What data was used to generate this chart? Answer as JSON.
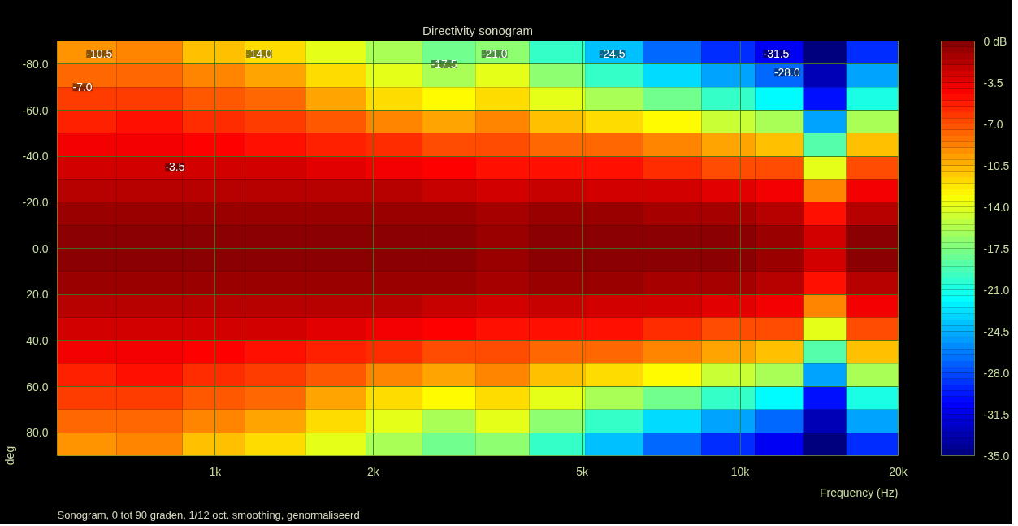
{
  "chart_data": {
    "type": "heatmap",
    "title": "Directivity sonogram",
    "xlabel": "Frequency (Hz)",
    "ylabel": "deg",
    "x": [
      560,
      750,
      1000,
      1300,
      1700,
      2200,
      2800,
      3500,
      4500,
      5700,
      7500,
      9500,
      12000,
      14500,
      17500
    ],
    "y": [
      -85,
      -75,
      -65,
      -55,
      -45,
      -35,
      -25,
      -15,
      -5,
      5,
      15,
      25,
      35,
      45,
      55,
      65,
      75,
      85
    ],
    "cells": [
      [
        -9.5,
        -9,
        -11,
        -12,
        -14,
        -16,
        -18,
        -17,
        -20,
        -24,
        -27,
        -29,
        -31,
        -35,
        -29
      ],
      [
        -8,
        -8,
        -9,
        -10,
        -12,
        -14,
        -16,
        -14,
        -17,
        -20,
        -23,
        -25,
        -27,
        -33,
        -25
      ],
      [
        -6.5,
        -6.5,
        -7.5,
        -8,
        -10,
        -12,
        -13,
        -12,
        -14,
        -16,
        -18,
        -20,
        -22,
        -30,
        -21
      ],
      [
        -5.5,
        -5,
        -6,
        -6.5,
        -7.5,
        -9,
        -10,
        -9,
        -11,
        -12,
        -13,
        -15,
        -16,
        -25,
        -16
      ],
      [
        -4,
        -4,
        -4.5,
        -5,
        -5.5,
        -6,
        -7,
        -7,
        -8,
        -8,
        -9,
        -10,
        -11,
        -19,
        -11
      ],
      [
        -3,
        -3,
        -3,
        -3,
        -3.5,
        -4,
        -4.5,
        -5,
        -5,
        -5,
        -6,
        -7,
        -7,
        -14,
        -7
      ],
      [
        -2,
        -2,
        -2,
        -2,
        -2,
        -2,
        -2.5,
        -3,
        -2.5,
        -3,
        -3,
        -3.5,
        -4,
        -9,
        -4
      ],
      [
        -1,
        -1,
        -1,
        -1,
        -1,
        -1,
        -1,
        -1.5,
        -1,
        -1,
        -1.5,
        -1.5,
        -2,
        -5,
        -2
      ],
      [
        -0.5,
        -0.5,
        -0.5,
        -0.5,
        -0.5,
        -0.5,
        -0.5,
        -1,
        -0.5,
        -0.5,
        -0.5,
        -0.5,
        -1,
        -3,
        -0.5
      ],
      [
        -0.5,
        -0.5,
        -0.5,
        -0.5,
        -0.5,
        -0.5,
        -0.5,
        -1,
        -0.5,
        -0.5,
        -0.5,
        -0.5,
        -1,
        -3,
        -0.5
      ],
      [
        -1,
        -1,
        -1,
        -1,
        -1,
        -1,
        -1,
        -1.5,
        -1,
        -1,
        -1.5,
        -1.5,
        -2,
        -5,
        -2
      ],
      [
        -2,
        -2,
        -2,
        -2,
        -2,
        -2,
        -2.5,
        -3,
        -2.5,
        -3,
        -3,
        -3.5,
        -4,
        -9,
        -4
      ],
      [
        -3,
        -3,
        -3,
        -3,
        -3.5,
        -4,
        -4.5,
        -5,
        -5,
        -5,
        -6,
        -7,
        -7,
        -14,
        -7
      ],
      [
        -4,
        -4,
        -4.5,
        -5,
        -5.5,
        -6,
        -7,
        -7,
        -8,
        -8,
        -9,
        -10,
        -11,
        -19,
        -11
      ],
      [
        -5.5,
        -5,
        -6,
        -6.5,
        -7.5,
        -9,
        -10,
        -9,
        -11,
        -12,
        -13,
        -15,
        -16,
        -25,
        -16
      ],
      [
        -6.5,
        -6.5,
        -7.5,
        -8,
        -10,
        -12,
        -13,
        -12,
        -14,
        -16,
        -18,
        -20,
        -22,
        -30,
        -21
      ],
      [
        -8,
        -8,
        -9,
        -10,
        -12,
        -14,
        -16,
        -14,
        -17,
        -20,
        -23,
        -25,
        -27,
        -33,
        -25
      ],
      [
        -9.5,
        -9,
        -11,
        -12,
        -14,
        -16,
        -18,
        -17,
        -20,
        -24,
        -27,
        -29,
        -31,
        -35,
        -29
      ]
    ],
    "xlim": [
      500,
      20000
    ],
    "ylim": [
      90,
      -90
    ],
    "log": "x",
    "grid": true,
    "xticks": [
      {
        "value": 1000,
        "label": "1k"
      },
      {
        "value": 2000,
        "label": "2k"
      },
      {
        "value": 5000,
        "label": "5k"
      },
      {
        "value": 10000,
        "label": "10k"
      },
      {
        "value": 20000,
        "label": "20k"
      }
    ],
    "yticks": [
      {
        "value": -80,
        "label": "-80.0"
      },
      {
        "value": -60,
        "label": "-60.0"
      },
      {
        "value": -40,
        "label": "-40.0"
      },
      {
        "value": -20,
        "label": "-20.0"
      },
      {
        "value": 0,
        "label": "0.0"
      },
      {
        "value": 20,
        "label": "20.0"
      },
      {
        "value": 40,
        "label": "40.0"
      },
      {
        "value": 60,
        "label": "60.0"
      },
      {
        "value": 80,
        "label": "80.0"
      }
    ],
    "clim": [
      -35,
      0
    ],
    "cticks": [
      {
        "value": 0,
        "label": "0 dB"
      },
      {
        "value": -3.5,
        "label": "-3.5"
      },
      {
        "value": -7,
        "label": "-7.0"
      },
      {
        "value": -10.5,
        "label": "-10.5"
      },
      {
        "value": -14,
        "label": "-14.0"
      },
      {
        "value": -17.5,
        "label": "-17.5"
      },
      {
        "value": -21,
        "label": "-21.0"
      },
      {
        "value": -24.5,
        "label": "-24.5"
      },
      {
        "value": -28,
        "label": "-28.0"
      },
      {
        "value": -31.5,
        "label": "-31.5"
      },
      {
        "value": -35,
        "label": "-35.0"
      }
    ],
    "annotations": [
      "-10.5",
      "-7.0",
      "-14.0",
      "-17.5",
      "-21.0",
      "-24.5",
      "-31.5",
      "-28.0",
      "-3.5",
      "Sonogram, 0 tot 90 graden, 1/12 oct. smoothing, genormaliseerd"
    ]
  }
}
